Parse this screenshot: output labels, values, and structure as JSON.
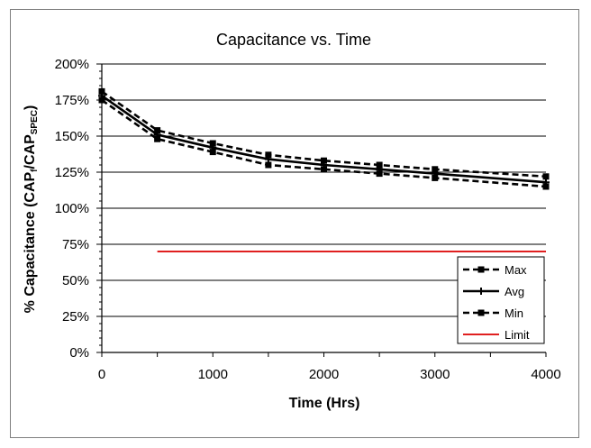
{
  "chart_data": {
    "type": "line",
    "title": "Capacitance vs. Time",
    "xlabel": "Time (Hrs)",
    "ylabel": {
      "main": "% Capacitance (CAP",
      "sub1": "f",
      "mid": "/CAP",
      "sub2": "SPEC",
      "end": ")"
    },
    "xlim": [
      0,
      4000
    ],
    "ylim": [
      0,
      200
    ],
    "x_ticks": [
      0,
      1000,
      2000,
      3000,
      4000
    ],
    "y_ticks": [
      0,
      25,
      50,
      75,
      100,
      125,
      150,
      175,
      200
    ],
    "y_tick_suffix": "%",
    "grid": {
      "horizontal": true,
      "vertical": false
    },
    "legend_position": "bottom-right",
    "series": [
      {
        "name": "Max",
        "style": "dashed",
        "marker": "square",
        "color": "#000000",
        "x": [
          0,
          500,
          1000,
          1500,
          2000,
          2500,
          3000,
          4000
        ],
        "y": [
          181,
          154,
          145,
          137,
          133,
          130,
          127,
          122
        ]
      },
      {
        "name": "Avg",
        "style": "solid",
        "marker": "plus",
        "color": "#000000",
        "x": [
          0,
          500,
          1000,
          1500,
          2000,
          2500,
          3000,
          4000
        ],
        "y": [
          178,
          151,
          142,
          134,
          130,
          127,
          124,
          118
        ]
      },
      {
        "name": "Min",
        "style": "dashed",
        "marker": "square",
        "color": "#000000",
        "x": [
          0,
          500,
          1000,
          1500,
          2000,
          2500,
          3000,
          4000
        ],
        "y": [
          175,
          148,
          139,
          130,
          127,
          124,
          121,
          115
        ]
      },
      {
        "name": "Limit",
        "style": "solid",
        "marker": "none",
        "color": "#e02020",
        "x": [
          500,
          4000
        ],
        "y": [
          70,
          70
        ]
      }
    ]
  }
}
